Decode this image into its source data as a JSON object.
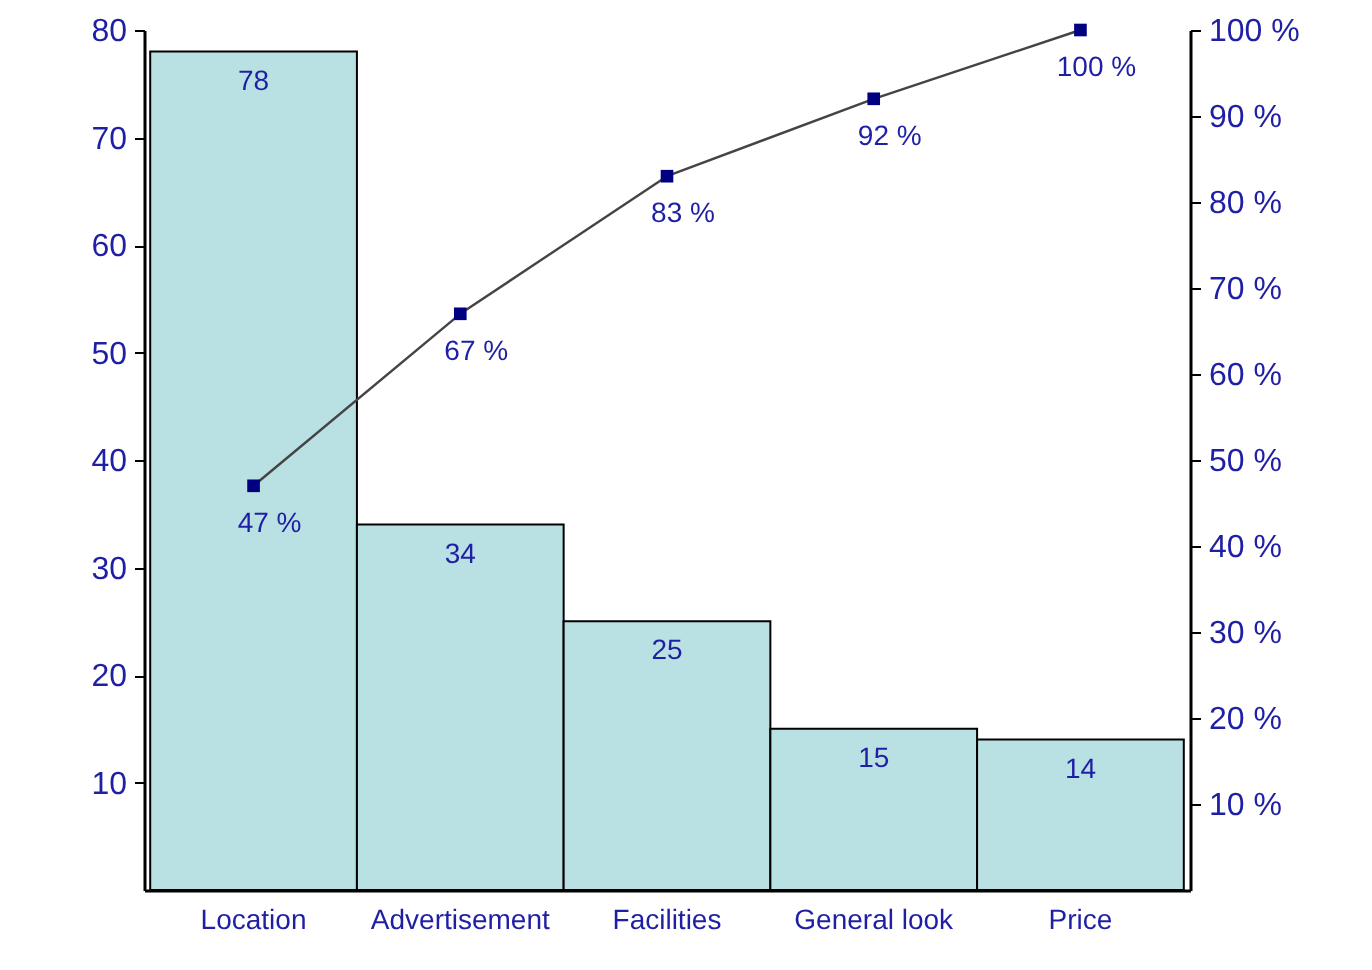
{
  "chart_data": {
    "type": "bar",
    "categories": [
      "Location",
      "Advertisement",
      "Facilities",
      "General look",
      "Price"
    ],
    "series": [
      {
        "color": "#b9e0e2",
        "values": [
          78,
          34,
          25,
          15,
          14
        ],
        "value_labels": [
          "78",
          "34",
          "25",
          "15",
          "14"
        ]
      },
      {
        "type": "line",
        "axis": "y2",
        "color": "#000080",
        "marker": "square",
        "values": [
          47,
          67,
          83,
          92,
          100
        ],
        "value_labels": [
          "47 %",
          "67 %",
          "83 %",
          "92 %",
          "100 %"
        ]
      }
    ],
    "ylim": [
      0,
      80
    ],
    "yticks": [
      10,
      20,
      30,
      40,
      50,
      60,
      70,
      80
    ],
    "y2lim": [
      0,
      100
    ],
    "y2ticks": [
      {
        "value": 10,
        "label": "10 %"
      },
      {
        "value": 20,
        "label": "20 %"
      },
      {
        "value": 30,
        "label": "30 %"
      },
      {
        "value": 40,
        "label": "40 %"
      },
      {
        "value": 50,
        "label": "50 %"
      },
      {
        "value": 60,
        "label": "60 %"
      },
      {
        "value": 70,
        "label": "70 %"
      },
      {
        "value": 80,
        "label": "80 %"
      },
      {
        "value": 90,
        "label": "90 %"
      },
      {
        "value": 100,
        "label": "100 %"
      }
    ]
  }
}
